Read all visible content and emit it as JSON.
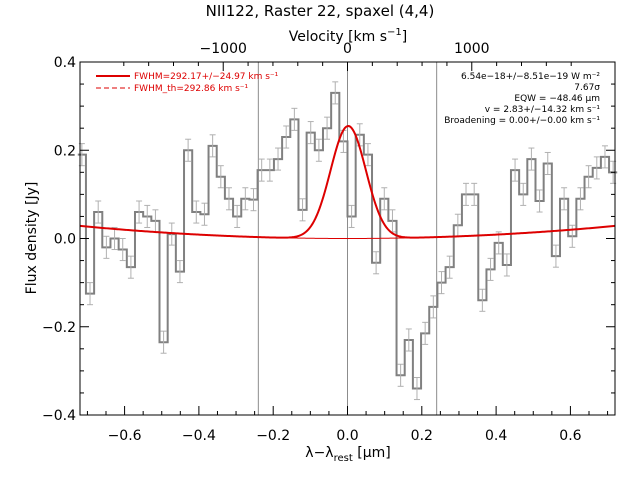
{
  "chart_data": {
    "type": "line",
    "title": "NII122, Raster 22, spaxel (4,4)",
    "xlabel": "λ−λrest [µm]",
    "xlabel_parts": {
      "main": "λ−λ",
      "sub": "rest",
      "unit": " [µm]"
    },
    "ylabel": "Flux density [Jy]",
    "top_axis_label": "Velocity [km s⁻¹]",
    "top_axis_label_parts": {
      "main": "Velocity [km s",
      "sup": "−1",
      "end": "]"
    },
    "xlim": [
      -0.72,
      0.72
    ],
    "ylim": [
      -0.4,
      0.4
    ],
    "top_ticks": [
      {
        "value": -1000,
        "label": "−1000",
        "x_at": -0.3345
      },
      {
        "value": 0,
        "label": "0",
        "x_at": 0.0
      },
      {
        "value": 1000,
        "label": "1000",
        "x_at": 0.3345
      }
    ],
    "x_ticks": [
      -0.6,
      -0.4,
      -0.2,
      0.0,
      0.2,
      0.4,
      0.6
    ],
    "x_tick_labels": [
      "−0.6",
      "−0.4",
      "−0.2",
      "0.0",
      "0.2",
      "0.4",
      "0.6"
    ],
    "y_ticks": [
      -0.4,
      -0.2,
      0.0,
      0.2,
      0.4
    ],
    "y_tick_labels": [
      "−0.4",
      "−0.2",
      "0.0",
      "0.2",
      "0.4"
    ],
    "vertical_lines": [
      -0.24,
      0.0,
      0.24
    ],
    "legend": [
      {
        "label": "FWHM=292.17+/−24.97 km s⁻¹",
        "color": "#dd0000",
        "style": "solid"
      },
      {
        "label": "FWHM_th=292.86 km s⁻¹",
        "color": "#dd0000",
        "style": "dashed"
      }
    ],
    "annotations": [
      "6.54e−18+/−8.51e−19 W m⁻²",
      "7.67σ",
      "EQW = −48.46 µm",
      "v = 2.83+/−14.32 km s⁻¹",
      "Broadening = 0.00+/−0.00 km s⁻¹"
    ],
    "series": [
      {
        "style": "step",
        "color": "#808080",
        "x": [
          -0.715,
          -0.693,
          -0.671,
          -0.649,
          -0.627,
          -0.605,
          -0.583,
          -0.561,
          -0.539,
          -0.517,
          -0.495,
          -0.473,
          -0.451,
          -0.429,
          -0.407,
          -0.385,
          -0.363,
          -0.341,
          -0.319,
          -0.297,
          -0.275,
          -0.253,
          -0.231,
          -0.209,
          -0.187,
          -0.165,
          -0.143,
          -0.121,
          -0.099,
          -0.077,
          -0.055,
          -0.033,
          -0.011,
          0.011,
          0.033,
          0.055,
          0.077,
          0.099,
          0.121,
          0.143,
          0.165,
          0.187,
          0.209,
          0.231,
          0.253,
          0.275,
          0.297,
          0.319,
          0.341,
          0.363,
          0.385,
          0.407,
          0.429,
          0.451,
          0.473,
          0.495,
          0.517,
          0.539,
          0.561,
          0.583,
          0.605,
          0.627,
          0.649,
          0.671,
          0.693,
          0.715
        ],
        "y": [
          0.19,
          -0.125,
          0.06,
          -0.02,
          0.0,
          -0.025,
          -0.065,
          0.06,
          0.05,
          0.04,
          -0.235,
          0.01,
          -0.075,
          0.2,
          0.06,
          0.055,
          0.21,
          0.14,
          0.09,
          0.05,
          0.09,
          0.088,
          0.155,
          0.155,
          0.18,
          0.23,
          0.27,
          0.065,
          0.24,
          0.2,
          0.25,
          0.33,
          0.22,
          0.05,
          0.235,
          0.19,
          -0.055,
          0.09,
          0.04,
          -0.31,
          -0.23,
          -0.34,
          -0.215,
          -0.155,
          -0.1,
          -0.065,
          0.03,
          0.1,
          0.1,
          -0.14,
          -0.07,
          -0.01,
          -0.06,
          0.155,
          0.1,
          0.18,
          0.085,
          0.17,
          -0.04,
          0.09,
          0.005,
          0.09,
          0.14,
          0.16,
          0.185,
          0.15
        ],
        "err": [
          0.025,
          0.025,
          0.025,
          0.025,
          0.025,
          0.025,
          0.025,
          0.025,
          0.025,
          0.025,
          0.025,
          0.025,
          0.025,
          0.025,
          0.025,
          0.025,
          0.025,
          0.025,
          0.025,
          0.025,
          0.025,
          0.025,
          0.025,
          0.025,
          0.025,
          0.025,
          0.025,
          0.025,
          0.025,
          0.025,
          0.025,
          0.025,
          0.025,
          0.025,
          0.025,
          0.025,
          0.025,
          0.025,
          0.025,
          0.025,
          0.025,
          0.025,
          0.025,
          0.025,
          0.025,
          0.025,
          0.025,
          0.025,
          0.025,
          0.025,
          0.025,
          0.025,
          0.025,
          0.025,
          0.025,
          0.025,
          0.025,
          0.025,
          0.025,
          0.025,
          0.025,
          0.025,
          0.025,
          0.025,
          0.025,
          0.025
        ]
      },
      {
        "style": "fit",
        "color": "#dd0000",
        "gaussian": {
          "amplitude": 0.255,
          "center": 0.002,
          "sigma": 0.0475
        },
        "baseline_quadratic": {
          "c0": 0.0,
          "c2": 0.055
        }
      },
      {
        "style": "baseline",
        "color": "#dd0000",
        "baseline_quadratic": {
          "c0": 0.0,
          "c2": 0.055
        }
      }
    ]
  }
}
